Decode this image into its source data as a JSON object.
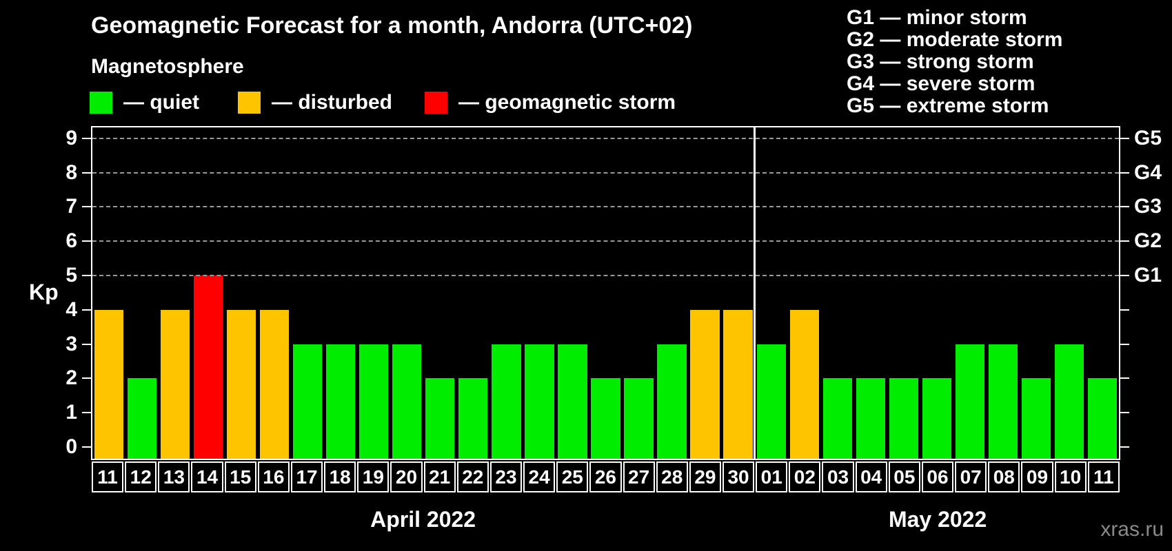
{
  "title": "Geomagnetic Forecast for a month, Andorra (UTC+02)",
  "subtitle": "Magnetosphere",
  "legend": {
    "items": [
      {
        "key": "quiet",
        "label": "— quiet",
        "color": "#00ED00"
      },
      {
        "key": "disturbed",
        "label": "— disturbed",
        "color": "#FFC400"
      },
      {
        "key": "storm",
        "label": "— geomagnetic storm",
        "color": "#FF0000"
      }
    ]
  },
  "storm_scale_legend": [
    "G1 — minor storm",
    "G2 — moderate storm",
    "G3 — strong storm",
    "G4 — severe storm",
    "G5 — extreme storm"
  ],
  "chart_data": {
    "type": "bar",
    "ylabel": "Kp",
    "ylim": [
      0,
      9
    ],
    "y_ticks": [
      0,
      1,
      2,
      3,
      4,
      5,
      6,
      7,
      8,
      9
    ],
    "gridlines_at": [
      5,
      6,
      7,
      8,
      9
    ],
    "grid": "dashed horizontal at Kp 5-9",
    "legend_position": "top",
    "right_axis": [
      {
        "kp": 5,
        "label": "G1"
      },
      {
        "kp": 6,
        "label": "G2"
      },
      {
        "kp": 7,
        "label": "G3"
      },
      {
        "kp": 8,
        "label": "G4"
      },
      {
        "kp": 9,
        "label": "G5"
      }
    ],
    "months": [
      {
        "label": "April 2022",
        "days": [
          {
            "day": "11",
            "kp": 4,
            "status": "disturbed"
          },
          {
            "day": "12",
            "kp": 2,
            "status": "quiet"
          },
          {
            "day": "13",
            "kp": 4,
            "status": "disturbed"
          },
          {
            "day": "14",
            "kp": 5,
            "status": "storm"
          },
          {
            "day": "15",
            "kp": 4,
            "status": "disturbed"
          },
          {
            "day": "16",
            "kp": 4,
            "status": "disturbed"
          },
          {
            "day": "17",
            "kp": 3,
            "status": "quiet"
          },
          {
            "day": "18",
            "kp": 3,
            "status": "quiet"
          },
          {
            "day": "19",
            "kp": 3,
            "status": "quiet"
          },
          {
            "day": "20",
            "kp": 3,
            "status": "quiet"
          },
          {
            "day": "21",
            "kp": 2,
            "status": "quiet"
          },
          {
            "day": "22",
            "kp": 2,
            "status": "quiet"
          },
          {
            "day": "23",
            "kp": 3,
            "status": "quiet"
          },
          {
            "day": "24",
            "kp": 3,
            "status": "quiet"
          },
          {
            "day": "25",
            "kp": 3,
            "status": "quiet"
          },
          {
            "day": "26",
            "kp": 2,
            "status": "quiet"
          },
          {
            "day": "27",
            "kp": 2,
            "status": "quiet"
          },
          {
            "day": "28",
            "kp": 3,
            "status": "quiet"
          },
          {
            "day": "29",
            "kp": 4,
            "status": "disturbed"
          },
          {
            "day": "30",
            "kp": 4,
            "status": "disturbed"
          }
        ]
      },
      {
        "label": "May 2022",
        "days": [
          {
            "day": "01",
            "kp": 3,
            "status": "quiet"
          },
          {
            "day": "02",
            "kp": 4,
            "status": "disturbed"
          },
          {
            "day": "03",
            "kp": 2,
            "status": "quiet"
          },
          {
            "day": "04",
            "kp": 2,
            "status": "quiet"
          },
          {
            "day": "05",
            "kp": 2,
            "status": "quiet"
          },
          {
            "day": "06",
            "kp": 2,
            "status": "quiet"
          },
          {
            "day": "07",
            "kp": 3,
            "status": "quiet"
          },
          {
            "day": "08",
            "kp": 3,
            "status": "quiet"
          },
          {
            "day": "09",
            "kp": 2,
            "status": "quiet"
          },
          {
            "day": "10",
            "kp": 3,
            "status": "quiet"
          },
          {
            "day": "11",
            "kp": 2,
            "status": "quiet"
          }
        ]
      }
    ]
  },
  "watermark": "xras.ru"
}
